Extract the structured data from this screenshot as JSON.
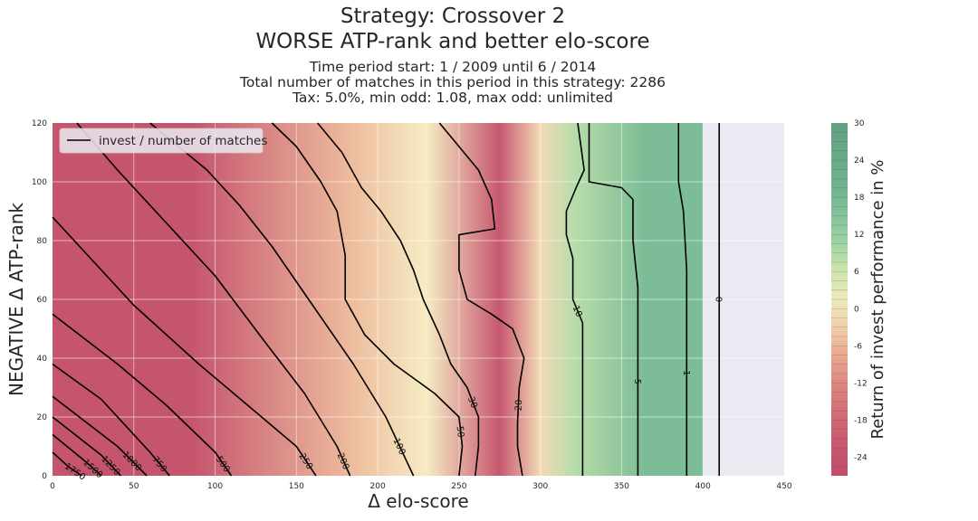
{
  "chart_data": {
    "type": "heatmap",
    "title": "Strategy: Crossover 2",
    "title_line2": "WORSE ATP-rank and better elo-score",
    "subtitle_lines": [
      "Time period start: 1 / 2009 until 6 / 2014",
      "Total number of matches in this period in this strategy: 2286",
      "Tax: 5.0%, min odd: 1.08, max odd: unlimited"
    ],
    "xlabel": "Δ elo-score",
    "ylabel": "NEGATIVE Δ ATP-rank",
    "xlim": [
      0,
      450
    ],
    "ylim": [
      0,
      120
    ],
    "xticks": [
      0,
      50,
      100,
      150,
      200,
      250,
      300,
      350,
      400,
      450
    ],
    "yticks": [
      0,
      20,
      40,
      60,
      80,
      100,
      120
    ],
    "legend": {
      "label": "invest / number of matches",
      "placement": "top-left"
    },
    "colorbar": {
      "label": "Return of invest performance in %",
      "range": [
        -27,
        30
      ],
      "ticks": [
        30,
        24,
        18,
        12,
        6,
        0,
        -6,
        -12,
        -18,
        -24
      ]
    },
    "data_extent_x": 400,
    "return_bands": [
      {
        "x_from": 0,
        "x_to": 170,
        "roi": -24
      },
      {
        "x_from": 170,
        "x_to": 200,
        "roi": -5
      },
      {
        "x_from": 200,
        "x_to": 260,
        "roi": 0
      },
      {
        "x_from": 260,
        "x_to": 290,
        "roi": -22
      },
      {
        "x_from": 290,
        "x_to": 310,
        "roi": -2
      },
      {
        "x_from": 310,
        "x_to": 330,
        "roi": 8
      },
      {
        "x_from": 330,
        "x_to": 400,
        "roi": 17
      }
    ],
    "contours": [
      {
        "label": "1750",
        "points": [
          [
            0,
            8
          ],
          [
            10,
            3
          ],
          [
            18,
            0
          ]
        ]
      },
      {
        "label": "1500",
        "points": [
          [
            0,
            14
          ],
          [
            20,
            5
          ],
          [
            30,
            0
          ]
        ]
      },
      {
        "label": "1250",
        "points": [
          [
            0,
            20
          ],
          [
            30,
            7
          ],
          [
            42,
            0
          ]
        ]
      },
      {
        "label": "1000",
        "points": [
          [
            0,
            27
          ],
          [
            40,
            10
          ],
          [
            58,
            0
          ]
        ]
      },
      {
        "label": "750",
        "points": [
          [
            0,
            38
          ],
          [
            30,
            26
          ],
          [
            60,
            8
          ],
          [
            72,
            0
          ]
        ]
      },
      {
        "label": "500",
        "points": [
          [
            0,
            55
          ],
          [
            40,
            38
          ],
          [
            70,
            24
          ],
          [
            100,
            8
          ],
          [
            110,
            0
          ]
        ]
      },
      {
        "label": "250",
        "points": [
          [
            0,
            88
          ],
          [
            50,
            58
          ],
          [
            90,
            38
          ],
          [
            120,
            24
          ],
          [
            150,
            10
          ],
          [
            162,
            0
          ]
        ]
      },
      {
        "label": "200",
        "points": [
          [
            15,
            120
          ],
          [
            40,
            104
          ],
          [
            70,
            86
          ],
          [
            100,
            68
          ],
          [
            130,
            46
          ],
          [
            155,
            28
          ],
          [
            175,
            10
          ],
          [
            183,
            0
          ]
        ]
      },
      {
        "label": "100",
        "points": [
          [
            60,
            120
          ],
          [
            95,
            104
          ],
          [
            115,
            92
          ],
          [
            135,
            78
          ],
          [
            160,
            58
          ],
          [
            185,
            38
          ],
          [
            205,
            20
          ],
          [
            222,
            0
          ]
        ]
      },
      {
        "label": "50",
        "points": [
          [
            135,
            120
          ],
          [
            150,
            112
          ],
          [
            165,
            100
          ],
          [
            175,
            90
          ],
          [
            180,
            75
          ],
          [
            180,
            60
          ],
          [
            192,
            48
          ],
          [
            210,
            38
          ],
          [
            235,
            28
          ],
          [
            250,
            20
          ],
          [
            252,
            10
          ],
          [
            250,
            0
          ]
        ]
      },
      {
        "label": "30",
        "points": [
          [
            163,
            120
          ],
          [
            178,
            110
          ],
          [
            190,
            98
          ],
          [
            202,
            90
          ],
          [
            214,
            80
          ],
          [
            222,
            70
          ],
          [
            228,
            60
          ],
          [
            238,
            48
          ],
          [
            245,
            38
          ],
          [
            255,
            30
          ],
          [
            262,
            20
          ],
          [
            262,
            10
          ],
          [
            260,
            0
          ]
        ]
      },
      {
        "label": "20",
        "points": [
          [
            238,
            120
          ],
          [
            250,
            112
          ],
          [
            262,
            104
          ],
          [
            270,
            94
          ],
          [
            272,
            84
          ],
          [
            250,
            82
          ],
          [
            250,
            70
          ],
          [
            255,
            60
          ],
          [
            270,
            55
          ],
          [
            283,
            50
          ],
          [
            290,
            40
          ],
          [
            287,
            30
          ],
          [
            286,
            18
          ],
          [
            286,
            10
          ],
          [
            289,
            0
          ]
        ]
      },
      {
        "label": "10",
        "points": [
          [
            323,
            120
          ],
          [
            327,
            104
          ],
          [
            322,
            98
          ],
          [
            316,
            90
          ],
          [
            316,
            82
          ],
          [
            320,
            74
          ],
          [
            320,
            60
          ],
          [
            326,
            52
          ],
          [
            326,
            0
          ]
        ]
      },
      {
        "label": "5",
        "points": [
          [
            330,
            120
          ],
          [
            330,
            100
          ],
          [
            350,
            98
          ],
          [
            357,
            94
          ],
          [
            357,
            80
          ],
          [
            360,
            64
          ],
          [
            360,
            0
          ]
        ]
      },
      {
        "label": "1",
        "points": [
          [
            385,
            120
          ],
          [
            385,
            100
          ],
          [
            388,
            90
          ],
          [
            390,
            70
          ],
          [
            390,
            0
          ]
        ]
      },
      {
        "label": "0",
        "points": [
          [
            410,
            120
          ],
          [
            410,
            0
          ]
        ]
      }
    ]
  }
}
